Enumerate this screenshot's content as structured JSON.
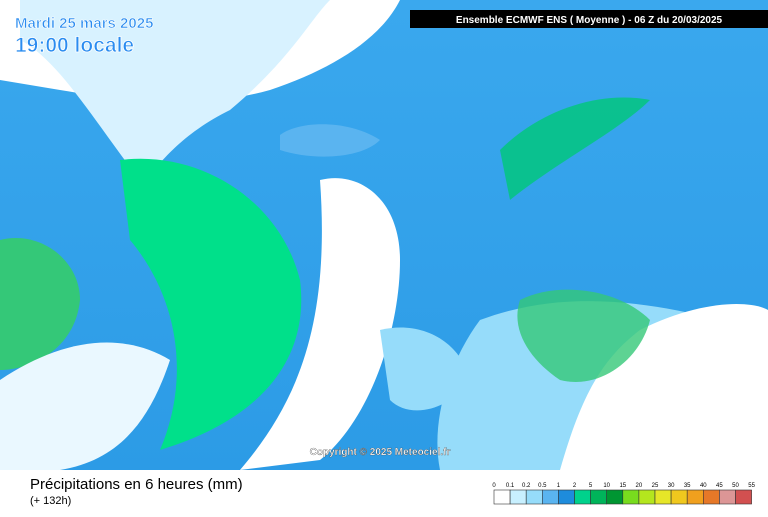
{
  "header": {
    "date": "Mardi 25 mars 2025",
    "time": "19:00 locale",
    "model": "Ensemble ECMWF ENS  ( Moyenne )  -  06 Z du 20/03/2025"
  },
  "copyright": "Copyright © 2025 Meteociel.fr",
  "legend": {
    "title": "Précipitations en 6 heures (mm)",
    "subtitle": "(+ 132h)",
    "scale_labels": [
      "0",
      "0.1",
      "0.2",
      "0.5",
      "1",
      "2",
      "5",
      "10",
      "15",
      "20",
      "25",
      "30",
      "35",
      "40",
      "45",
      "50",
      "55"
    ],
    "colors": [
      "#ffffff",
      "#c8f0ff",
      "#96dcfa",
      "#5ab4f0",
      "#1e8cdc",
      "#00d28c",
      "#00b45a",
      "#009632",
      "#78dc1e",
      "#b4e61e",
      "#e6e628",
      "#f0c81e",
      "#f0a01e",
      "#e67828",
      "#dc9696",
      "#d25050",
      "#c82828"
    ]
  }
}
